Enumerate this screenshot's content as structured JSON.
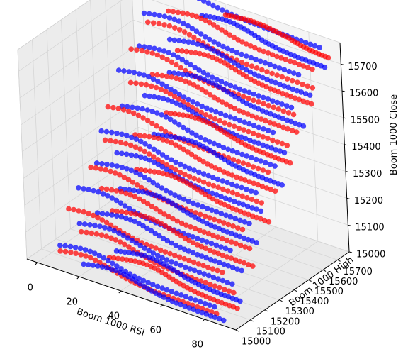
{
  "chart_data": {
    "type": "scatter",
    "projection": "3d",
    "title": "",
    "xlabel": "Boom 1000 RSI",
    "ylabel": "Boom 1000 High",
    "zlabel": "Boom 1000 Close",
    "xlim": [
      -5,
      95
    ],
    "ylim": [
      15000,
      15780
    ],
    "zlim": [
      15000,
      15780
    ],
    "x_ticks": [
      "0",
      "20",
      "40",
      "60",
      "80"
    ],
    "y_ticks": [
      "15000",
      "15100",
      "15200",
      "15300",
      "15400",
      "15500",
      "15600",
      "15700"
    ],
    "z_ticks": [
      "15000",
      "15100",
      "15200",
      "15300",
      "15400",
      "15500",
      "15600",
      "15700"
    ],
    "grid": true,
    "legend": "none",
    "marker": "circle",
    "series": [
      {
        "color": "#0000ff",
        "curves": [
          {
            "level": 15745,
            "rsi_start": 12,
            "rsi_end": 85,
            "peak": 22
          },
          {
            "level": 15700,
            "rsi_start": 30,
            "rsi_end": 90,
            "peak": 42
          },
          {
            "level": 15660,
            "rsi_start": 5,
            "rsi_end": 80,
            "peak": 18
          },
          {
            "level": 15620,
            "rsi_start": 20,
            "rsi_end": 88,
            "peak": 35
          },
          {
            "level": 15575,
            "rsi_start": 8,
            "rsi_end": 82,
            "peak": 20
          },
          {
            "level": 15540,
            "rsi_start": 25,
            "rsi_end": 90,
            "peak": 40
          },
          {
            "level": 15500,
            "rsi_start": 3,
            "rsi_end": 78,
            "peak": 15
          },
          {
            "level": 15460,
            "rsi_start": 18,
            "rsi_end": 86,
            "peak": 30
          },
          {
            "level": 15420,
            "rsi_start": 10,
            "rsi_end": 84,
            "peak": 25
          },
          {
            "level": 15380,
            "rsi_start": 28,
            "rsi_end": 90,
            "peak": 45
          },
          {
            "level": 15340,
            "rsi_start": 5,
            "rsi_end": 80,
            "peak": 18
          },
          {
            "level": 15300,
            "rsi_start": 15,
            "rsi_end": 85,
            "peak": 28
          },
          {
            "level": 15260,
            "rsi_start": 8,
            "rsi_end": 82,
            "peak": 22
          },
          {
            "level": 15220,
            "rsi_start": 22,
            "rsi_end": 88,
            "peak": 38
          },
          {
            "level": 15180,
            "rsi_start": 4,
            "rsi_end": 78,
            "peak": 14
          },
          {
            "level": 15140,
            "rsi_start": 16,
            "rsi_end": 86,
            "peak": 30
          },
          {
            "level": 15100,
            "rsi_start": 10,
            "rsi_end": 84,
            "peak": 24
          },
          {
            "level": 15065,
            "rsi_start": 30,
            "rsi_end": 90,
            "peak": 45
          },
          {
            "level": 15030,
            "rsi_start": 5,
            "rsi_end": 80,
            "peak": 18
          },
          {
            "level": 15005,
            "rsi_start": 18,
            "rsi_end": 86,
            "peak": 32
          }
        ]
      },
      {
        "color": "#ff0000",
        "curves": [
          {
            "level": 15725,
            "rsi_start": 40,
            "rsi_end": 90,
            "peak": 55
          },
          {
            "level": 15685,
            "rsi_start": 15,
            "rsi_end": 85,
            "peak": 28
          },
          {
            "level": 15640,
            "rsi_start": 8,
            "rsi_end": 88,
            "peak": 20
          },
          {
            "level": 15600,
            "rsi_start": 25,
            "rsi_end": 90,
            "peak": 40
          },
          {
            "level": 15560,
            "rsi_start": 5,
            "rsi_end": 84,
            "peak": 16
          },
          {
            "level": 15520,
            "rsi_start": 18,
            "rsi_end": 88,
            "peak": 32
          },
          {
            "level": 15480,
            "rsi_start": 10,
            "rsi_end": 86,
            "peak": 22
          },
          {
            "level": 15440,
            "rsi_start": 30,
            "rsi_end": 90,
            "peak": 45
          },
          {
            "level": 15400,
            "rsi_start": 4,
            "rsi_end": 82,
            "peak": 14
          },
          {
            "level": 15360,
            "rsi_start": 20,
            "rsi_end": 88,
            "peak": 34
          },
          {
            "level": 15320,
            "rsi_start": 8,
            "rsi_end": 84,
            "peak": 20
          },
          {
            "level": 15280,
            "rsi_start": 26,
            "rsi_end": 90,
            "peak": 42
          },
          {
            "level": 15240,
            "rsi_start": 6,
            "rsi_end": 80,
            "peak": 16
          },
          {
            "level": 15200,
            "rsi_start": 14,
            "rsi_end": 86,
            "peak": 26
          },
          {
            "level": 15160,
            "rsi_start": 22,
            "rsi_end": 90,
            "peak": 38
          },
          {
            "level": 15120,
            "rsi_start": 3,
            "rsi_end": 78,
            "peak": 12
          },
          {
            "level": 15080,
            "rsi_start": 12,
            "rsi_end": 86,
            "peak": 25
          },
          {
            "level": 15045,
            "rsi_start": 28,
            "rsi_end": 90,
            "peak": 44
          },
          {
            "level": 15015,
            "rsi_start": 6,
            "rsi_end": 82,
            "peak": 18
          }
        ]
      }
    ]
  }
}
